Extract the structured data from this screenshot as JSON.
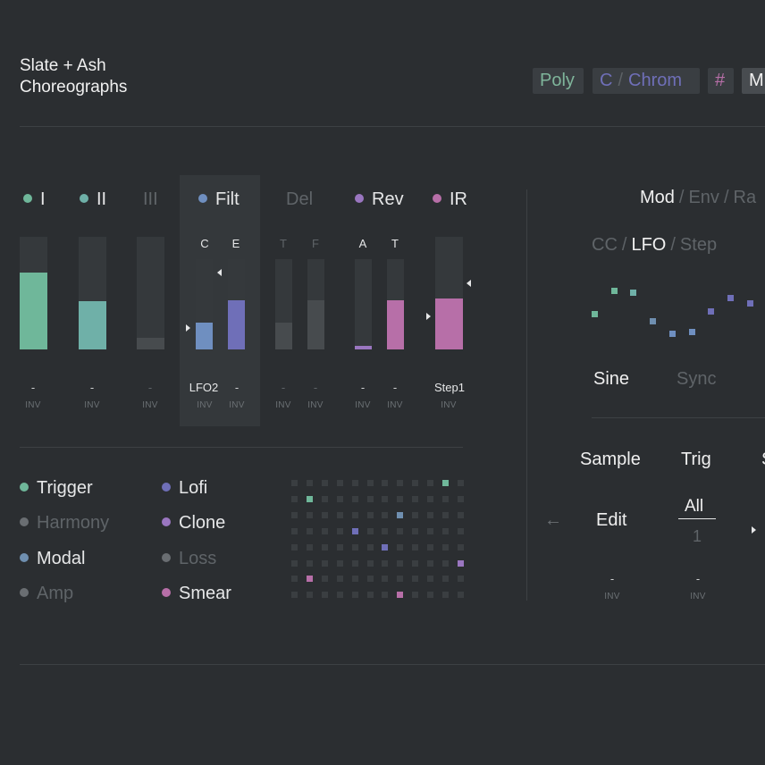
{
  "header": {
    "title_line1": "Slate + Ash",
    "title_line2": "Choreographs",
    "chips": {
      "mode": "Poly",
      "key_root": "C",
      "key_sep": "/",
      "key_scale": "Chrom",
      "sharp": "#",
      "cut": "M"
    }
  },
  "channels": [
    {
      "label": "I",
      "dot": "#6fb79a",
      "active": true
    },
    {
      "label": "II",
      "dot": "#6fb0a8",
      "active": true
    },
    {
      "label": "III",
      "dot": null,
      "active": false
    },
    {
      "label": "Filt",
      "dot": "#6f8fc0",
      "active": true,
      "selected": true
    },
    {
      "label": "Del",
      "dot": null,
      "active": false
    },
    {
      "label": "Rev",
      "dot": "#9a76c0",
      "active": true
    },
    {
      "label": "IR",
      "dot": "#b76fa8",
      "active": true
    }
  ],
  "faders": {
    "sub_labels": {
      "c": "C",
      "e": "E",
      "t1": "T",
      "f": "F",
      "a": "A",
      "t2": "T"
    },
    "values": {
      "i": 0.68,
      "ii": 0.43,
      "iii": 0.1,
      "filt_c": 0.3,
      "filt_e": 0.54,
      "del_t": 0.3,
      "del_f": 0.54,
      "rev_a": 0.04,
      "rev_t": 0.54,
      "ir": 0.45
    },
    "mod_sources": {
      "i": "-",
      "ii": "-",
      "iii": "-",
      "filt_c": "LFO2",
      "filt_e": "-",
      "del_t": "-",
      "del_f": "-",
      "rev_a": "-",
      "rev_t": "-",
      "ir": "Step1"
    },
    "inv_label": "INV"
  },
  "targets": {
    "col1": [
      {
        "label": "Trigger",
        "dot": "#6fb79a",
        "active": true
      },
      {
        "label": "Harmony",
        "dot": "#6a6e72",
        "active": false
      },
      {
        "label": "Modal",
        "dot": "#6f8fb0",
        "active": true
      },
      {
        "label": "Amp",
        "dot": "#6a6e72",
        "active": false
      }
    ],
    "col2": [
      {
        "label": "Lofi",
        "dot": "#6f6fb8",
        "active": true
      },
      {
        "label": "Clone",
        "dot": "#9a76c0",
        "active": true
      },
      {
        "label": "Loss",
        "dot": "#6a6e72",
        "active": false
      },
      {
        "label": "Smear",
        "dot": "#b76fa8",
        "active": true
      }
    ]
  },
  "mod_panel": {
    "tabs": {
      "mod": "Mod",
      "env": "Env",
      "ra": "Ra",
      "sep": "/"
    },
    "source_tabs": {
      "cc": "CC",
      "lfo": "LFO",
      "step": "Step",
      "sep": "/"
    },
    "lfo_points": [
      0.35,
      0.9,
      0.85,
      0.2,
      -0.1,
      -0.05,
      0.42,
      0.74,
      0.6
    ],
    "shape": "Sine",
    "sync": "Sync",
    "controls": {
      "sample": "Sample",
      "trig": "Trig",
      "partial_s": "S",
      "edit": "Edit",
      "all": "All",
      "all_value": "1",
      "back_arrow": "←",
      "edit_mod": "-",
      "all_mod": "-",
      "inv": "INV"
    }
  },
  "colors": {
    "bg": "#2b2e31",
    "green": "#6fb79a",
    "teal": "#6fb0a8",
    "blue": "#6f8fc0",
    "indigo": "#6f6fb8",
    "purple": "#9a76c0",
    "magenta": "#b76fa8",
    "grey": "#4a4e51"
  }
}
